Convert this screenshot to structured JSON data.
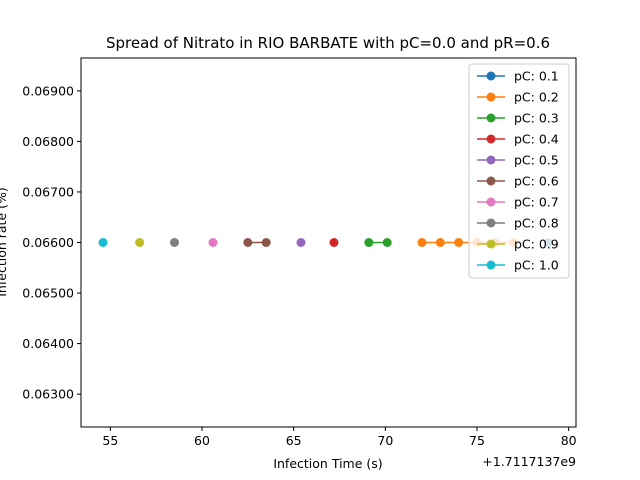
{
  "chart_data": {
    "type": "line",
    "title": "Spread of Nitrato in RIO BARBATE with pC=0.0 and pR=0.6",
    "xlabel": "Infection Time (s)",
    "ylabel": "Infection rate (%)",
    "x_offset_label": "+1.7117137e9",
    "xlim": [
      53.4,
      80.4
    ],
    "ylim": [
      0.06235,
      0.06965
    ],
    "xticks": [
      55,
      60,
      65,
      70,
      75,
      80
    ],
    "xtick_labels": [
      "55",
      "60",
      "65",
      "70",
      "75",
      "80"
    ],
    "yticks": [
      0.063,
      0.064,
      0.065,
      0.066,
      0.067,
      0.068,
      0.069
    ],
    "ytick_labels": [
      "0.06300",
      "0.06400",
      "0.06500",
      "0.06600",
      "0.06700",
      "0.06800",
      "0.06900"
    ],
    "grid": false,
    "legend_position": "upper right",
    "series": [
      {
        "name": "pC: 0.1",
        "color": "#1f77b4",
        "x": [
          78.9
        ],
        "y": [
          0.066
        ]
      },
      {
        "name": "pC: 0.2",
        "color": "#ff7f0e",
        "x": [
          72.0,
          73.0,
          74.0,
          75.0,
          76.0,
          77.0
        ],
        "y": [
          0.066,
          0.066,
          0.066,
          0.066,
          0.066,
          0.066
        ]
      },
      {
        "name": "pC: 0.3",
        "color": "#2ca02c",
        "x": [
          69.1,
          70.1
        ],
        "y": [
          0.066,
          0.066
        ]
      },
      {
        "name": "pC: 0.4",
        "color": "#d62728",
        "x": [
          67.2
        ],
        "y": [
          0.066
        ]
      },
      {
        "name": "pC: 0.5",
        "color": "#9467bd",
        "x": [
          65.4
        ],
        "y": [
          0.066
        ]
      },
      {
        "name": "pC: 0.6",
        "color": "#8c564b",
        "x": [
          62.5,
          63.5
        ],
        "y": [
          0.066,
          0.066
        ]
      },
      {
        "name": "pC: 0.7",
        "color": "#e377c2",
        "x": [
          60.6
        ],
        "y": [
          0.066
        ]
      },
      {
        "name": "pC: 0.8",
        "color": "#7f7f7f",
        "x": [
          58.5
        ],
        "y": [
          0.066
        ]
      },
      {
        "name": "pC: 0.9",
        "color": "#bcbd22",
        "x": [
          56.6
        ],
        "y": [
          0.066
        ]
      },
      {
        "name": "pC: 1.0",
        "color": "#17becf",
        "x": [
          54.6
        ],
        "y": [
          0.066
        ]
      }
    ]
  }
}
